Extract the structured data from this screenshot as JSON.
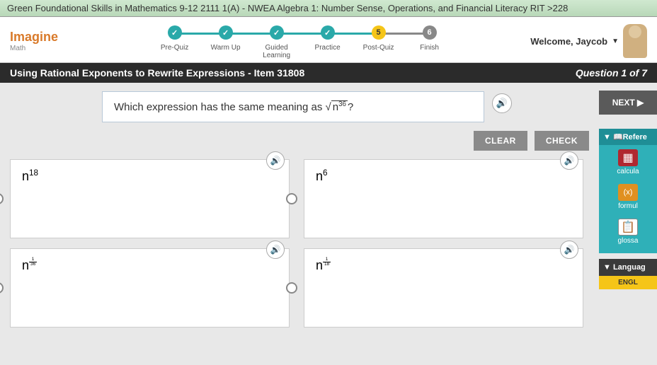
{
  "topbar": {
    "title": "Green Foundational Skills in Mathematics 9-12 2111 1(A) - NWEA Algebra 1: Number Sense, Operations, and Financial Literacy RIT >228"
  },
  "logo": {
    "title": "Imagine",
    "sub": "Math"
  },
  "steps": [
    {
      "label": "Pre-Quiz",
      "mark": "✓",
      "kind": "done"
    },
    {
      "label": "Warm Up",
      "mark": "✓",
      "kind": "done"
    },
    {
      "label": "Guided Learning",
      "mark": "✓",
      "kind": "done"
    },
    {
      "label": "Practice",
      "mark": "✓",
      "kind": "done"
    },
    {
      "label": "Post-Quiz",
      "mark": "5",
      "kind": "current"
    },
    {
      "label": "Finish",
      "mark": "6",
      "kind": "final"
    }
  ],
  "welcome": {
    "text": "Welcome, Jaycob"
  },
  "blackbar": {
    "left": "Using Rational Exponents to Rewrite Expressions - Item 31808",
    "right": "Question 1 of 7"
  },
  "question": {
    "prefix": "Which expression has the same meaning as ",
    "radicand_base": "n",
    "radicand_exp": "36",
    "suffix": "?"
  },
  "buttons": {
    "clear": "CLEAR",
    "check": "CHECK",
    "next": "NEXT ▶"
  },
  "answers": [
    {
      "base": "n",
      "exp_type": "int",
      "exp": "18"
    },
    {
      "base": "n",
      "exp_type": "int",
      "exp": "6"
    },
    {
      "base": "n",
      "exp_type": "frac",
      "num": "1",
      "den": "36"
    },
    {
      "base": "n",
      "exp_type": "frac",
      "num": "1",
      "den": "18"
    }
  ],
  "sidebar": {
    "references": {
      "header": "▼ 📖Refere",
      "calc": "calcula",
      "formula": "formul",
      "glossary": "glossa"
    },
    "language": {
      "header": "▼ Languag",
      "english": "ENGL"
    }
  }
}
